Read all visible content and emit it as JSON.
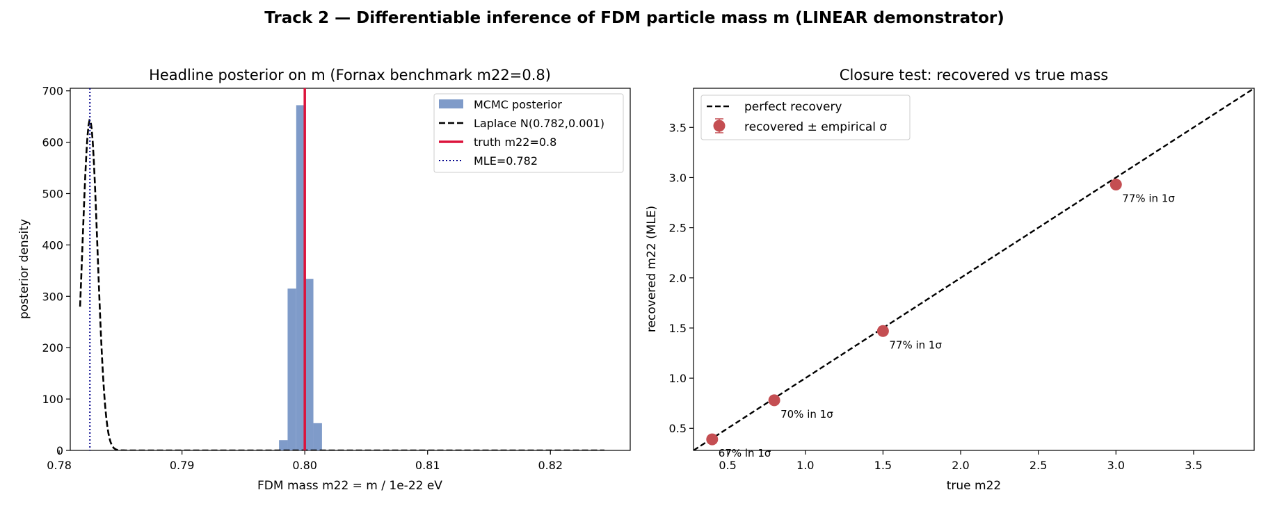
{
  "suptitle": "Track 2 — Differentiable inference of FDM particle mass m (LINEAR demonstrator)",
  "colors": {
    "hist": "#7f9bc9",
    "laplace": "#000000",
    "truth": "#dc143c",
    "mle": "#00008b",
    "points": "#c44e52",
    "diagonal": "#000000"
  },
  "chart_data": [
    {
      "type": "bar",
      "title": "Headline posterior on m (Fornax benchmark m22=0.8)",
      "xlabel": "FDM mass  m22 = m / 1e-22 eV",
      "ylabel": "posterior density",
      "xlim": [
        0.7809,
        0.8265
      ],
      "ylim": [
        0,
        705
      ],
      "xticks": [
        0.78,
        0.79,
        0.8,
        0.81,
        0.82
      ],
      "xtick_labels": [
        "0.78",
        "0.79",
        "0.80",
        "0.81",
        "0.82"
      ],
      "yticks": [
        0,
        100,
        200,
        300,
        400,
        500,
        600,
        700
      ],
      "ytick_labels": [
        "0",
        "100",
        "200",
        "300",
        "400",
        "500",
        "600",
        "700"
      ],
      "histogram": {
        "name": "MCMC posterior",
        "bins": [
          {
            "x0": 0.7979,
            "x1": 0.7986,
            "value": 20
          },
          {
            "x0": 0.7986,
            "x1": 0.7993,
            "value": 315
          },
          {
            "x0": 0.7993,
            "x1": 0.8,
            "value": 672
          },
          {
            "x0": 0.8,
            "x1": 0.8007,
            "value": 334
          },
          {
            "x0": 0.8007,
            "x1": 0.8014,
            "value": 53
          }
        ]
      },
      "laplace": {
        "name": "Laplace N(0.782,0.001)",
        "mean": 0.7825,
        "sigma": 0.00062,
        "x_start": 0.7817,
        "x_end": 0.8244
      },
      "truth": {
        "name": "truth m22=0.8",
        "x": 0.8
      },
      "mle": {
        "name": "MLE=0.782",
        "x": 0.7825
      },
      "legend": "upper right"
    },
    {
      "type": "scatter",
      "title": "Closure test: recovered vs true mass",
      "xlabel": "true  m22",
      "ylabel": "recovered  m22 (MLE)",
      "xlim": [
        0.28,
        3.89
      ],
      "ylim": [
        0.28,
        3.89
      ],
      "xticks": [
        0.5,
        1.0,
        1.5,
        2.0,
        2.5,
        3.0,
        3.5
      ],
      "xtick_labels": [
        "0.5",
        "1.0",
        "1.5",
        "2.0",
        "2.5",
        "3.0",
        "3.5"
      ],
      "yticks": [
        0.5,
        1.0,
        1.5,
        2.0,
        2.5,
        3.0,
        3.5
      ],
      "ytick_labels": [
        "0.5",
        "1.0",
        "1.5",
        "2.0",
        "2.5",
        "3.0",
        "3.5"
      ],
      "diagonal_name": "perfect recovery",
      "points_name": "recovered ± empirical σ",
      "points": [
        {
          "x": 0.4,
          "y": 0.39,
          "label": "67% in 1σ"
        },
        {
          "x": 0.8,
          "y": 0.78,
          "label": "70% in 1σ"
        },
        {
          "x": 1.5,
          "y": 1.47,
          "label": "77% in 1σ"
        },
        {
          "x": 3.0,
          "y": 2.93,
          "label": "77% in 1σ"
        }
      ],
      "legend": "upper left"
    }
  ]
}
